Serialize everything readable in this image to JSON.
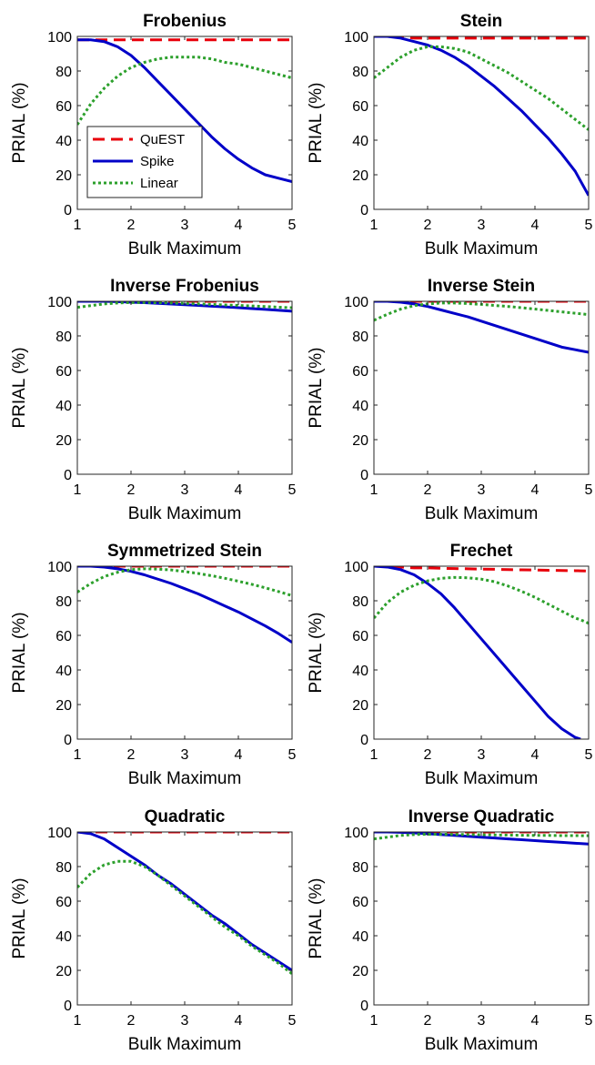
{
  "chart_data": [
    {
      "type": "line",
      "title": "Frobenius",
      "xlabel": "Bulk Maximum",
      "ylabel": "PRIAL (%)",
      "xlim": [
        1,
        5
      ],
      "ylim": [
        0,
        100
      ],
      "xticks": [
        "1",
        "2",
        "3",
        "4",
        "5"
      ],
      "yticks": [
        "0",
        "20",
        "40",
        "60",
        "80",
        "100"
      ],
      "legend": {
        "placement": "middle-left",
        "entries": [
          "QuEST",
          "Spike",
          "Linear"
        ]
      },
      "x": [
        1.0,
        1.25,
        1.5,
        1.75,
        2.0,
        2.25,
        2.5,
        2.75,
        3.0,
        3.25,
        3.5,
        3.75,
        4.0,
        4.25,
        4.5,
        4.75,
        5.0
      ],
      "series": [
        {
          "name": "QuEST",
          "color": "#e8000b",
          "style": "dashed",
          "values": [
            98,
            98,
            98,
            98,
            98,
            98,
            98,
            98,
            98,
            98,
            98,
            98,
            98,
            98,
            98,
            98,
            98
          ]
        },
        {
          "name": "Spike",
          "color": "#0000c8",
          "style": "solid",
          "values": [
            98,
            98,
            97,
            94,
            89,
            82,
            74,
            66,
            58,
            50,
            42,
            35,
            29,
            24,
            20,
            18,
            16
          ]
        },
        {
          "name": "Linear",
          "color": "#2ca02c",
          "style": "dotted",
          "values": [
            49,
            61,
            70,
            77,
            82,
            85,
            87,
            88,
            88,
            88,
            87,
            85,
            84,
            82,
            80,
            78,
            76
          ]
        }
      ]
    },
    {
      "type": "line",
      "title": "Stein",
      "xlabel": "Bulk Maximum",
      "ylabel": "PRIAL (%)",
      "xlim": [
        1,
        5
      ],
      "ylim": [
        0,
        100
      ],
      "xticks": [
        "1",
        "2",
        "3",
        "4",
        "5"
      ],
      "yticks": [
        "0",
        "20",
        "40",
        "60",
        "80",
        "100"
      ],
      "x": [
        1.0,
        1.25,
        1.5,
        1.75,
        2.0,
        2.25,
        2.5,
        2.75,
        3.0,
        3.25,
        3.5,
        3.75,
        4.0,
        4.25,
        4.5,
        4.75,
        5.0
      ],
      "series": [
        {
          "name": "QuEST",
          "color": "#e8000b",
          "style": "dashed",
          "values": [
            100,
            100,
            100,
            99,
            99,
            99,
            99,
            99,
            99,
            99,
            99,
            99,
            99,
            99,
            99,
            99,
            99
          ]
        },
        {
          "name": "Spike",
          "color": "#0000c8",
          "style": "solid",
          "values": [
            100,
            100,
            99,
            97,
            95,
            92,
            88,
            83,
            77,
            71,
            64,
            57,
            49,
            41,
            32,
            22,
            8
          ]
        },
        {
          "name": "Linear",
          "color": "#2ca02c",
          "style": "dotted",
          "values": [
            76,
            82,
            88,
            92,
            94,
            94,
            93,
            91,
            87,
            83,
            79,
            74,
            69,
            64,
            58,
            52,
            46
          ]
        }
      ]
    },
    {
      "type": "line",
      "title": "Inverse Frobenius",
      "xlabel": "Bulk Maximum",
      "ylabel": "PRIAL (%)",
      "xlim": [
        1,
        5
      ],
      "ylim": [
        0,
        100
      ],
      "xticks": [
        "1",
        "2",
        "3",
        "4",
        "5"
      ],
      "yticks": [
        "0",
        "20",
        "40",
        "60",
        "80",
        "100"
      ],
      "x": [
        1.0,
        1.25,
        1.5,
        1.75,
        2.0,
        2.25,
        2.5,
        2.75,
        3.0,
        3.25,
        3.5,
        3.75,
        4.0,
        4.25,
        4.5,
        4.75,
        5.0
      ],
      "series": [
        {
          "name": "QuEST",
          "color": "#e8000b",
          "style": "dashed",
          "values": [
            100,
            100,
            100,
            100,
            100,
            100,
            100,
            100,
            100,
            100,
            100,
            100,
            100,
            100,
            100,
            100,
            100
          ]
        },
        {
          "name": "Spike",
          "color": "#0000c8",
          "style": "solid",
          "values": [
            100,
            100,
            100,
            99.8,
            99.5,
            99.2,
            98.8,
            98.4,
            98,
            97.6,
            97.2,
            96.8,
            96.3,
            95.8,
            95.3,
            94.8,
            94.3
          ]
        },
        {
          "name": "Linear",
          "color": "#2ca02c",
          "style": "dotted",
          "values": [
            96.5,
            97.5,
            98.5,
            99,
            99.3,
            99.3,
            99.2,
            99,
            98.8,
            98.5,
            98.2,
            97.9,
            97.6,
            97.3,
            97,
            96.6,
            96.3
          ]
        }
      ]
    },
    {
      "type": "line",
      "title": "Inverse Stein",
      "xlabel": "Bulk Maximum",
      "ylabel": "PRIAL (%)",
      "xlim": [
        1,
        5
      ],
      "ylim": [
        0,
        100
      ],
      "xticks": [
        "1",
        "2",
        "3",
        "4",
        "5"
      ],
      "yticks": [
        "0",
        "20",
        "40",
        "60",
        "80",
        "100"
      ],
      "x": [
        1.0,
        1.25,
        1.5,
        1.75,
        2.0,
        2.25,
        2.5,
        2.75,
        3.0,
        3.25,
        3.5,
        3.75,
        4.0,
        4.25,
        4.5,
        4.75,
        5.0
      ],
      "series": [
        {
          "name": "QuEST",
          "color": "#e8000b",
          "style": "dashed",
          "values": [
            100,
            100,
            100,
            100,
            100,
            100,
            100,
            100,
            100,
            100,
            100,
            100,
            100,
            100,
            100,
            100,
            100
          ]
        },
        {
          "name": "Spike",
          "color": "#0000c8",
          "style": "solid",
          "values": [
            100,
            100,
            99.5,
            98.5,
            97,
            95,
            93,
            91,
            88.5,
            86,
            83.5,
            81,
            78.5,
            76,
            73.5,
            72,
            70.5
          ]
        },
        {
          "name": "Linear",
          "color": "#2ca02c",
          "style": "dotted",
          "values": [
            89,
            92.5,
            95.5,
            97.5,
            98.5,
            99,
            99,
            98.7,
            98.2,
            97.6,
            97,
            96.3,
            95.5,
            94.7,
            93.9,
            93.1,
            92.3
          ]
        }
      ]
    },
    {
      "type": "line",
      "title": "Symmetrized Stein",
      "xlabel": "Bulk Maximum",
      "ylabel": "PRIAL (%)",
      "xlim": [
        1,
        5
      ],
      "ylim": [
        0,
        100
      ],
      "xticks": [
        "1",
        "2",
        "3",
        "4",
        "5"
      ],
      "yticks": [
        "0",
        "20",
        "40",
        "60",
        "80",
        "100"
      ],
      "x": [
        1.0,
        1.25,
        1.5,
        1.75,
        2.0,
        2.25,
        2.5,
        2.75,
        3.0,
        3.25,
        3.5,
        3.75,
        4.0,
        4.25,
        4.5,
        4.75,
        5.0
      ],
      "series": [
        {
          "name": "QuEST",
          "color": "#e8000b",
          "style": "dashed",
          "values": [
            100,
            100,
            100,
            100,
            100,
            100,
            100,
            100,
            100,
            100,
            100,
            100,
            100,
            100,
            100,
            100,
            100
          ]
        },
        {
          "name": "Spike",
          "color": "#0000c8",
          "style": "solid",
          "values": [
            100,
            100,
            99.5,
            98.5,
            97,
            95,
            92.5,
            90,
            87,
            84,
            80.5,
            77,
            73.5,
            69.5,
            65.5,
            61,
            56
          ]
        },
        {
          "name": "Linear",
          "color": "#2ca02c",
          "style": "dotted",
          "values": [
            85,
            90,
            94,
            96.5,
            98,
            98.5,
            98.3,
            97.8,
            96.9,
            95.8,
            94.5,
            93,
            91.3,
            89.5,
            87.5,
            85.3,
            83
          ]
        }
      ]
    },
    {
      "type": "line",
      "title": "Frechet",
      "xlabel": "Bulk Maximum",
      "ylabel": "PRIAL (%)",
      "xlim": [
        1,
        5
      ],
      "ylim": [
        0,
        100
      ],
      "xticks": [
        "1",
        "2",
        "3",
        "4",
        "5"
      ],
      "yticks": [
        "0",
        "20",
        "40",
        "60",
        "80",
        "100"
      ],
      "x": [
        1.0,
        1.25,
        1.5,
        1.75,
        2.0,
        2.25,
        2.5,
        2.75,
        3.0,
        3.25,
        3.5,
        3.75,
        4.0,
        4.25,
        4.5,
        4.75,
        4.85,
        5.0
      ],
      "series": [
        {
          "name": "QuEST",
          "color": "#e8000b",
          "style": "dashed",
          "values": [
            100,
            100,
            99.5,
            99,
            99,
            98.8,
            98.6,
            98.5,
            98.3,
            98.2,
            98,
            97.9,
            97.8,
            97.6,
            97.5,
            97.4,
            97.3,
            97.2
          ]
        },
        {
          "name": "Spike",
          "color": "#0000c8",
          "style": "solid",
          "values": [
            100,
            99.5,
            98,
            95,
            90,
            84,
            76,
            67,
            58,
            49,
            40,
            31,
            22,
            13,
            6,
            1,
            0,
            null
          ]
        },
        {
          "name": "Linear",
          "color": "#2ca02c",
          "style": "dotted",
          "values": [
            70,
            79,
            85,
            89,
            91.5,
            93,
            93.5,
            93.3,
            92.5,
            91,
            88.5,
            85.5,
            82,
            78,
            74,
            70,
            69,
            67
          ]
        }
      ]
    },
    {
      "type": "line",
      "title": "Quadratic",
      "xlabel": "Bulk Maximum",
      "ylabel": "PRIAL (%)",
      "xlim": [
        1,
        5
      ],
      "ylim": [
        0,
        100
      ],
      "xticks": [
        "1",
        "2",
        "3",
        "4",
        "5"
      ],
      "yticks": [
        "0",
        "20",
        "40",
        "60",
        "80",
        "100"
      ],
      "x": [
        1.0,
        1.25,
        1.5,
        1.75,
        2.0,
        2.25,
        2.5,
        2.75,
        3.0,
        3.25,
        3.5,
        3.75,
        4.0,
        4.25,
        4.5,
        4.75,
        5.0
      ],
      "series": [
        {
          "name": "QuEST",
          "color": "#e8000b",
          "style": "dashed",
          "values": [
            100,
            100,
            100,
            100,
            100,
            100,
            100,
            100,
            100,
            100,
            100,
            100,
            100,
            100,
            100,
            100,
            100
          ]
        },
        {
          "name": "Spike",
          "color": "#0000c8",
          "style": "solid",
          "values": [
            100,
            99,
            96,
            91,
            86,
            81,
            75,
            70,
            64,
            58,
            52,
            47,
            41,
            35,
            30,
            25,
            20
          ]
        },
        {
          "name": "Linear",
          "color": "#2ca02c",
          "style": "dotted",
          "values": [
            68,
            76,
            81,
            83,
            83,
            80,
            75,
            69,
            63,
            57,
            51,
            45,
            40,
            34,
            29,
            24,
            18
          ]
        }
      ]
    },
    {
      "type": "line",
      "title": "Inverse Quadratic",
      "xlabel": "Bulk Maximum",
      "ylabel": "PRIAL (%)",
      "xlim": [
        1,
        5
      ],
      "ylim": [
        0,
        100
      ],
      "xticks": [
        "1",
        "2",
        "3",
        "4",
        "5"
      ],
      "yticks": [
        "0",
        "20",
        "40",
        "60",
        "80",
        "100"
      ],
      "x": [
        1.0,
        1.25,
        1.5,
        1.75,
        2.0,
        2.25,
        2.5,
        2.75,
        3.0,
        3.25,
        3.5,
        3.75,
        4.0,
        4.25,
        4.5,
        4.75,
        5.0
      ],
      "series": [
        {
          "name": "QuEST",
          "color": "#e8000b",
          "style": "dashed",
          "values": [
            100,
            100,
            100,
            100,
            100,
            100,
            100,
            100,
            100,
            100,
            100,
            100,
            100,
            100,
            100,
            100,
            100
          ]
        },
        {
          "name": "Spike",
          "color": "#0000c8",
          "style": "solid",
          "values": [
            100,
            100,
            99.8,
            99.5,
            99,
            98.5,
            98,
            97.5,
            97,
            96.5,
            96,
            95.5,
            95,
            94.5,
            94,
            93.5,
            93
          ]
        },
        {
          "name": "Linear",
          "color": "#2ca02c",
          "style": "dotted",
          "values": [
            96,
            97,
            98,
            98.5,
            98.7,
            98.7,
            98.6,
            98.5,
            98.4,
            98.3,
            98.2,
            98.1,
            98,
            98,
            97.9,
            97.9,
            97.8
          ]
        }
      ]
    }
  ]
}
